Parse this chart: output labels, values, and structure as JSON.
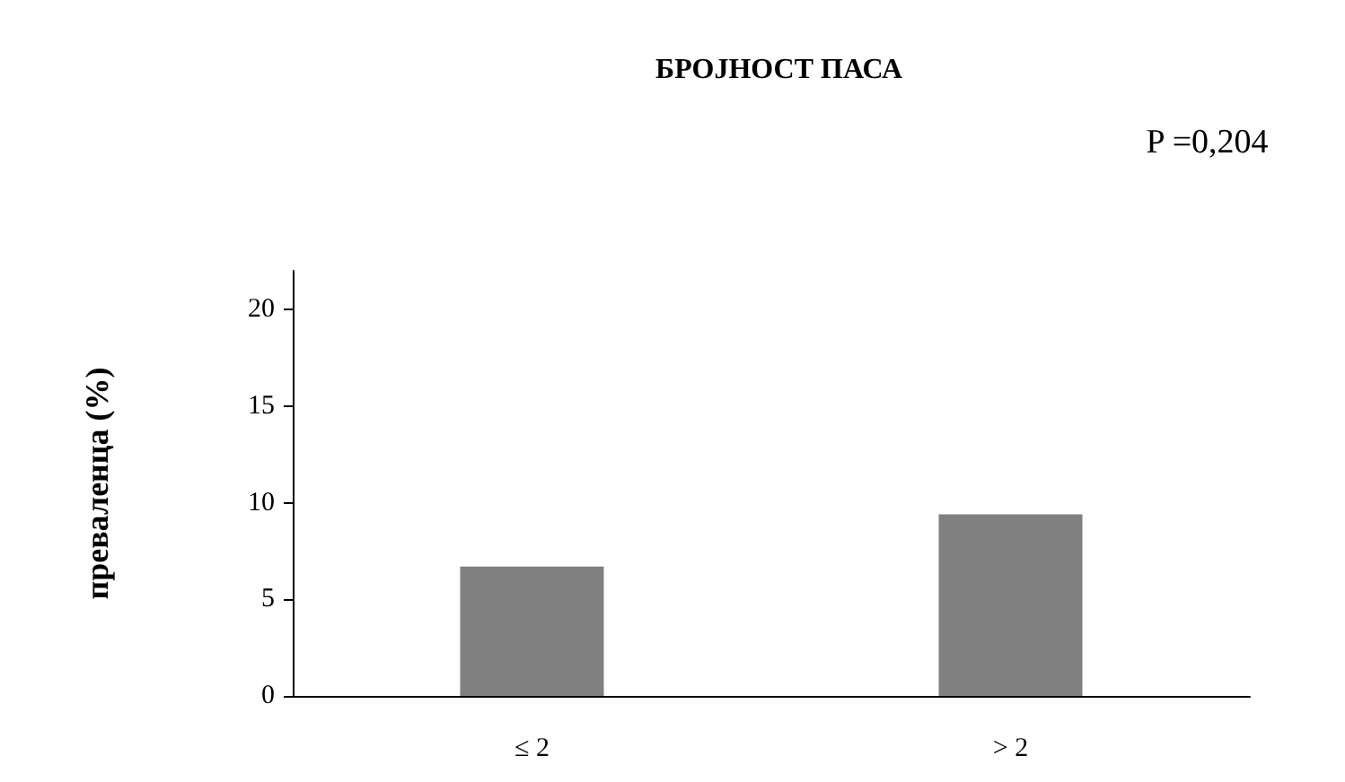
{
  "chart_data": {
    "type": "bar",
    "title": "БРОЈНОСТ ПАСА",
    "annotations": [
      "P =0,204"
    ],
    "ylabel": "преваленца (%)",
    "categories": [
      "≤ 2",
      "> 2"
    ],
    "values": [
      6.7,
      9.4
    ],
    "color": "#808080",
    "ylim": [
      0,
      22
    ],
    "yticks": [
      0,
      5,
      10,
      15,
      20
    ]
  }
}
